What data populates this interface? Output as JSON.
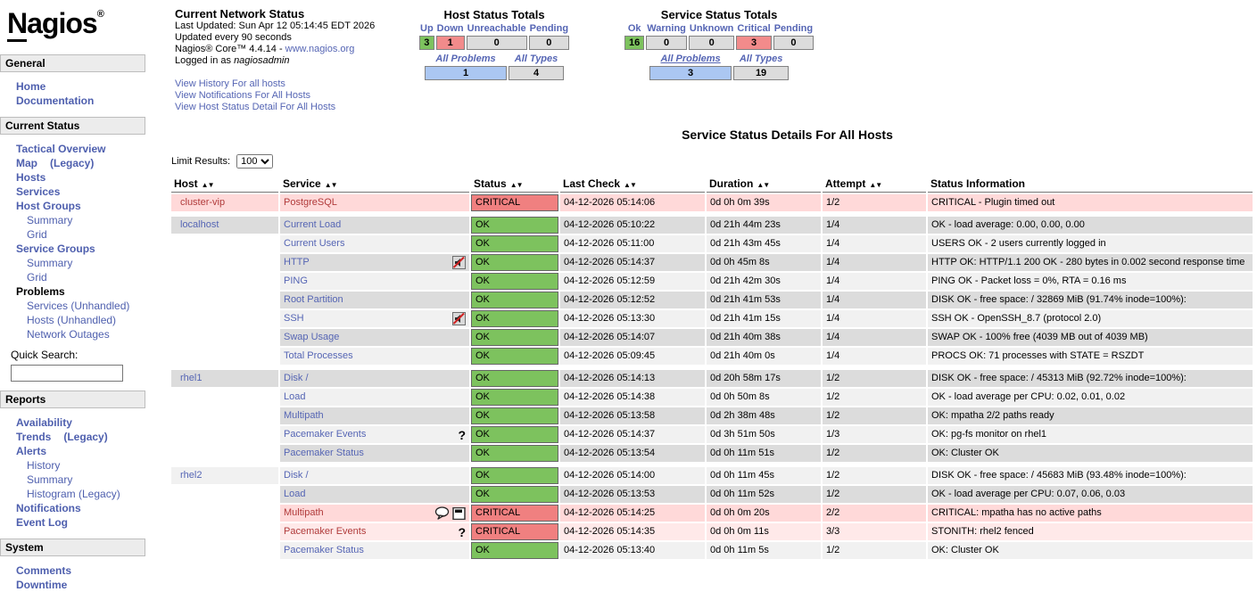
{
  "logo": {
    "n": "N",
    "rest": "agios",
    "reg": "®"
  },
  "colors": {
    "ok_green": "#7dc25e",
    "critical_red": "#f08080",
    "problems_blue": "#abc7f2",
    "neutral_gray": "#dcdcdc",
    "row_even": "#dcdcdc",
    "row_odd": "#f1f1f1",
    "critical_row_dark": "#ffd9d9",
    "critical_row_light": "#ffe9e9",
    "link_blue": "#5565b4",
    "critical_link_red": "#b03a3a"
  },
  "icons": {
    "sort_asc": "▲",
    "sort_desc": "▼",
    "question_glyph": "?"
  },
  "sidebar": {
    "quick_search_label": "Quick Search:",
    "sections": [
      {
        "title": "General",
        "items": [
          {
            "label": "Home",
            "bold": true
          },
          {
            "label": "Documentation",
            "bold": true
          }
        ]
      },
      {
        "title": "Current Status",
        "items": [
          {
            "label": "Tactical Overview",
            "bold": true
          },
          {
            "label": "Map",
            "bold": true,
            "label2": "(Legacy)"
          },
          {
            "label": "Hosts",
            "bold": true
          },
          {
            "label": "Services",
            "bold": true
          },
          {
            "label": "Host Groups",
            "bold": true
          },
          {
            "label": "Summary",
            "sub": true
          },
          {
            "label": "Grid",
            "sub": true
          },
          {
            "label": "Service Groups",
            "bold": true
          },
          {
            "label": "Summary",
            "sub": true
          },
          {
            "label": "Grid",
            "sub": true
          },
          {
            "label": "Problems",
            "link": false
          },
          {
            "label": "Services (Unhandled)",
            "sub": true
          },
          {
            "label": "Hosts (Unhandled)",
            "sub": true
          },
          {
            "label": "Network Outages",
            "sub": true
          },
          {
            "search": true
          }
        ]
      },
      {
        "title": "Reports",
        "items": [
          {
            "label": "Availability",
            "bold": true
          },
          {
            "label": "Trends",
            "bold": true,
            "label2": "(Legacy)"
          },
          {
            "label": "Alerts",
            "bold": true
          },
          {
            "label": "History",
            "sub": true
          },
          {
            "label": "Summary",
            "sub": true
          },
          {
            "label": "Histogram (Legacy)",
            "sub": true
          },
          {
            "label": "Notifications",
            "bold": true
          },
          {
            "label": "Event Log",
            "bold": true
          }
        ]
      },
      {
        "title": "System",
        "items": [
          {
            "label": "Comments",
            "bold": true
          },
          {
            "label": "Downtime",
            "bold": true
          }
        ]
      }
    ]
  },
  "header": {
    "network_status": {
      "title": "Current Network Status",
      "last_updated": "Last Updated: Sun Apr 12 05:14:45 EDT 2026",
      "update_interval": "Updated every 90 seconds",
      "version_prefix": "Nagios® Core™ 4.4.14 - ",
      "version_link": "www.nagios.org",
      "logged_in_prefix": "Logged in as ",
      "logged_in_user": "nagiosadmin",
      "links": [
        "View History For all hosts",
        "View Notifications For All Hosts",
        "View Host Status Detail For All Hosts"
      ]
    },
    "host_totals": {
      "title": "Host Status Totals",
      "columns": [
        "Up",
        "Down",
        "Unreachable",
        "Pending"
      ],
      "values": [
        "3",
        "1",
        "0",
        "0"
      ],
      "value_styles": [
        "ok",
        "crit",
        "",
        ""
      ],
      "problems_label": "All Problems",
      "types_label": "All Types",
      "problems_underline": false,
      "problems_value": "1",
      "types_value": "4"
    },
    "service_totals": {
      "title": "Service Status Totals",
      "columns": [
        "Ok",
        "Warning",
        "Unknown",
        "Critical",
        "Pending"
      ],
      "values": [
        "16",
        "0",
        "0",
        "3",
        "0"
      ],
      "value_styles": [
        "ok",
        "",
        "",
        "crit",
        ""
      ],
      "problems_label": "All Problems",
      "types_label": "All Types",
      "problems_underline": true,
      "problems_value": "3",
      "types_value": "19"
    }
  },
  "main": {
    "page_title": "Service Status Details For All Hosts",
    "limit_label": "Limit Results:",
    "limit_value": "100",
    "table": {
      "headers": [
        "Host",
        "Service",
        "Status",
        "Last Check",
        "Duration",
        "Attempt",
        "Status Information"
      ],
      "sortable": [
        true,
        true,
        true,
        true,
        true,
        true,
        false
      ],
      "rows": [
        {
          "host": "cluster-vip",
          "service": "PostgreSQL",
          "icons": [],
          "status": "CRITICAL",
          "status_class": "crit",
          "last_check": "04-12-2026 05:14:06",
          "duration": "0d 0h 0m 39s",
          "attempt": "1/2",
          "info": "CRITICAL - Plugin timed out",
          "shade": "ca",
          "critical": true
        },
        {
          "spacer": true
        },
        {
          "host": "localhost",
          "service": "Current Load",
          "icons": [],
          "status": "OK",
          "status_class": "ok",
          "last_check": "04-12-2026 05:10:22",
          "duration": "0d 21h 44m 23s",
          "attempt": "1/4",
          "info": "OK - load average: 0.00, 0.00, 0.00",
          "shade": "g",
          "critical": false
        },
        {
          "host": "",
          "service": "Current Users",
          "icons": [],
          "status": "OK",
          "status_class": "ok",
          "last_check": "04-12-2026 05:11:00",
          "duration": "0d 21h 43m 45s",
          "attempt": "1/4",
          "info": "USERS OK - 2 users currently logged in",
          "shade": "w",
          "critical": false
        },
        {
          "host": "",
          "service": "HTTP",
          "icons": [
            "notifications-disabled"
          ],
          "status": "OK",
          "status_class": "ok",
          "last_check": "04-12-2026 05:14:37",
          "duration": "0d 0h 45m 8s",
          "attempt": "1/4",
          "info": "HTTP OK: HTTP/1.1 200 OK - 280 bytes in 0.002 second response time",
          "shade": "g",
          "critical": false
        },
        {
          "host": "",
          "service": "PING",
          "icons": [],
          "status": "OK",
          "status_class": "ok",
          "last_check": "04-12-2026 05:12:59",
          "duration": "0d 21h 42m 30s",
          "attempt": "1/4",
          "info": "PING OK - Packet loss = 0%, RTA = 0.16 ms",
          "shade": "w",
          "critical": false
        },
        {
          "host": "",
          "service": "Root Partition",
          "icons": [],
          "status": "OK",
          "status_class": "ok",
          "last_check": "04-12-2026 05:12:52",
          "duration": "0d 21h 41m 53s",
          "attempt": "1/4",
          "info": "DISK OK - free space: / 32869 MiB (91.74% inode=100%):",
          "shade": "g",
          "critical": false
        },
        {
          "host": "",
          "service": "SSH",
          "icons": [
            "notifications-disabled"
          ],
          "status": "OK",
          "status_class": "ok",
          "last_check": "04-12-2026 05:13:30",
          "duration": "0d 21h 41m 15s",
          "attempt": "1/4",
          "info": "SSH OK - OpenSSH_8.7 (protocol 2.0)",
          "shade": "w",
          "critical": false
        },
        {
          "host": "",
          "service": "Swap Usage",
          "icons": [],
          "status": "OK",
          "status_class": "ok",
          "last_check": "04-12-2026 05:14:07",
          "duration": "0d 21h 40m 38s",
          "attempt": "1/4",
          "info": "SWAP OK - 100% free (4039 MB out of 4039 MB)",
          "shade": "g",
          "critical": false
        },
        {
          "host": "",
          "service": "Total Processes",
          "icons": [],
          "status": "OK",
          "status_class": "ok",
          "last_check": "04-12-2026 05:09:45",
          "duration": "0d 21h 40m 0s",
          "attempt": "1/4",
          "info": "PROCS OK: 71 processes with STATE = RSZDT",
          "shade": "w",
          "critical": false
        },
        {
          "spacer": true
        },
        {
          "host": "rhel1",
          "service": "Disk /",
          "icons": [],
          "status": "OK",
          "status_class": "ok",
          "last_check": "04-12-2026 05:14:13",
          "duration": "0d 20h 58m 17s",
          "attempt": "1/2",
          "info": "DISK OK - free space: / 45313 MiB (92.72% inode=100%):",
          "shade": "g",
          "critical": false
        },
        {
          "host": "",
          "service": "Load",
          "icons": [],
          "status": "OK",
          "status_class": "ok",
          "last_check": "04-12-2026 05:14:38",
          "duration": "0d 0h 50m 8s",
          "attempt": "1/2",
          "info": "OK - load average per CPU: 0.02, 0.01, 0.02",
          "shade": "w",
          "critical": false
        },
        {
          "host": "",
          "service": "Multipath",
          "icons": [],
          "status": "OK",
          "status_class": "ok",
          "last_check": "04-12-2026 05:13:58",
          "duration": "0d 2h 38m 48s",
          "attempt": "1/2",
          "info": "OK: mpatha 2/2 paths ready",
          "shade": "g",
          "critical": false
        },
        {
          "host": "",
          "service": "Pacemaker Events",
          "icons": [
            "question"
          ],
          "status": "OK",
          "status_class": "ok",
          "last_check": "04-12-2026 05:14:37",
          "duration": "0d 3h 51m 50s",
          "attempt": "1/3",
          "info": "OK: pg-fs monitor on rhel1",
          "shade": "w",
          "critical": false
        },
        {
          "host": "",
          "service": "Pacemaker Status",
          "icons": [],
          "status": "OK",
          "status_class": "ok",
          "last_check": "04-12-2026 05:13:54",
          "duration": "0d 0h 11m 51s",
          "attempt": "1/2",
          "info": "OK: Cluster OK",
          "shade": "g",
          "critical": false
        },
        {
          "spacer": true
        },
        {
          "host": "rhel2",
          "service": "Disk /",
          "icons": [],
          "status": "OK",
          "status_class": "ok",
          "last_check": "04-12-2026 05:14:00",
          "duration": "0d 0h 11m 45s",
          "attempt": "1/2",
          "info": "DISK OK - free space: / 45683 MiB (93.48% inode=100%):",
          "shade": "w",
          "critical": false
        },
        {
          "host": "",
          "service": "Load",
          "icons": [],
          "status": "OK",
          "status_class": "ok",
          "last_check": "04-12-2026 05:13:53",
          "duration": "0d 0h 11m 52s",
          "attempt": "1/2",
          "info": "OK - load average per CPU: 0.07, 0.06, 0.03",
          "shade": "g",
          "critical": false
        },
        {
          "host": "",
          "service": "Multipath",
          "icons": [
            "comment",
            "downtime"
          ],
          "status": "CRITICAL",
          "status_class": "crit",
          "last_check": "04-12-2026 05:14:25",
          "duration": "0d 0h 0m 20s",
          "attempt": "2/2",
          "info": "CRITICAL: mpatha has no active paths",
          "shade": "ca",
          "critical": true
        },
        {
          "host": "",
          "service": "Pacemaker Events",
          "icons": [
            "question"
          ],
          "status": "CRITICAL",
          "status_class": "crit",
          "last_check": "04-12-2026 05:14:35",
          "duration": "0d 0h 0m 11s",
          "attempt": "3/3",
          "info": "STONITH: rhel2 fenced",
          "shade": "cb",
          "critical": true
        },
        {
          "host": "",
          "service": "Pacemaker Status",
          "icons": [],
          "status": "OK",
          "status_class": "ok",
          "last_check": "04-12-2026 05:13:40",
          "duration": "0d 0h 11m 5s",
          "attempt": "1/2",
          "info": "OK: Cluster OK",
          "shade": "w",
          "critical": false
        }
      ]
    }
  }
}
